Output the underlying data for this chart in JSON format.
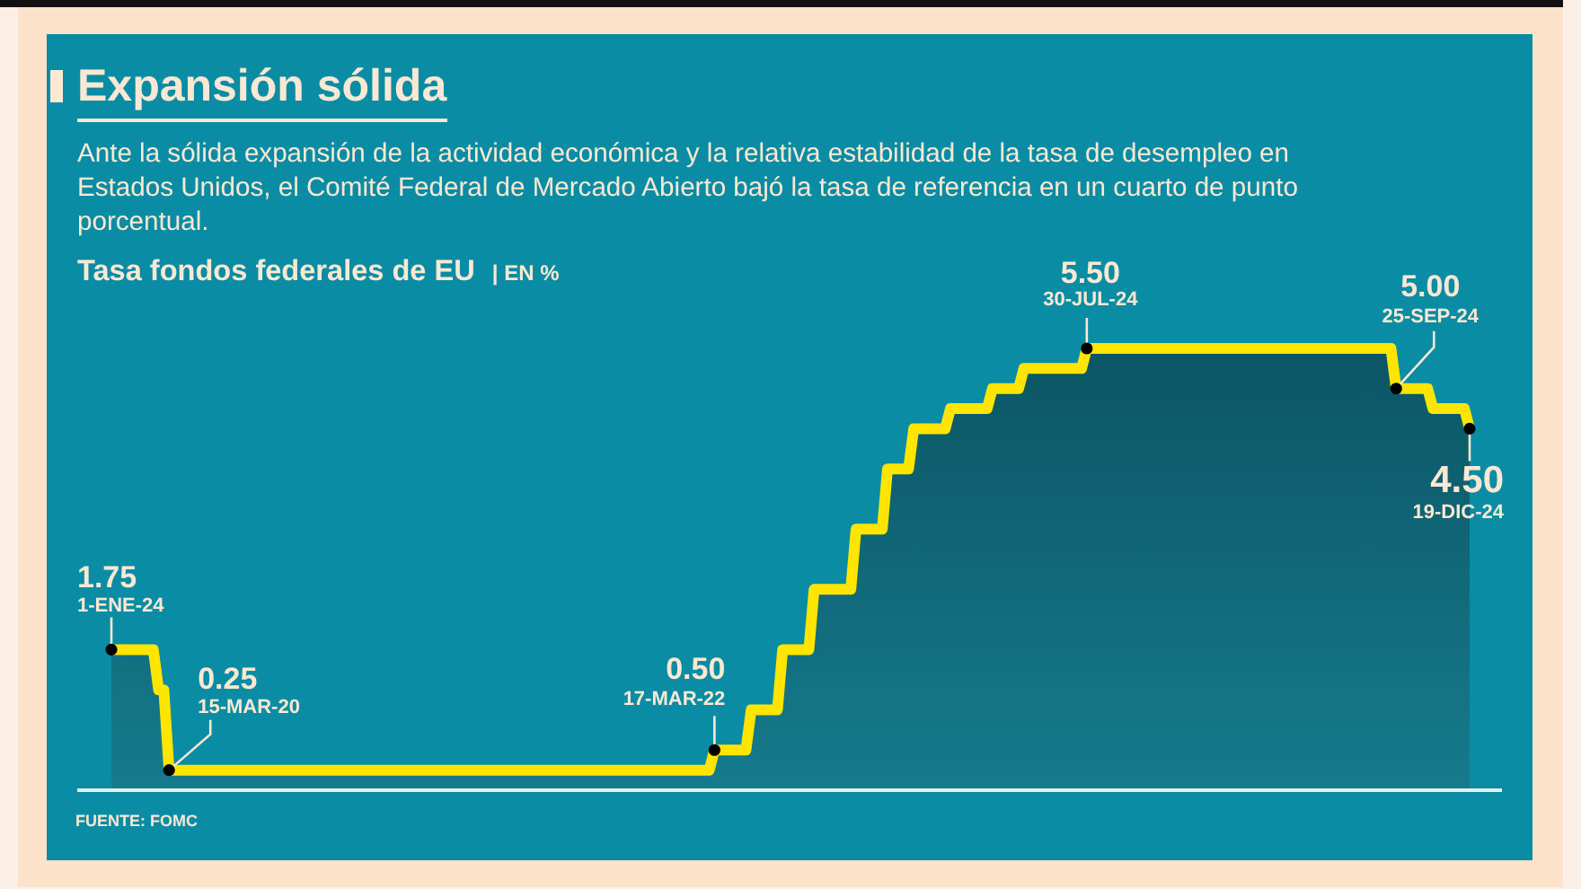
{
  "chart_data": {
    "type": "area",
    "title": "Expansión sólida",
    "subtitle": "Ante la sólida expansión de la actividad económica y la relativa estabilidad de la tasa de desempleo en Estados Unidos, el Comité Federal de Mercado Abierto bajó la tasa de referencia en un cuarto de punto porcentual.",
    "ylabel": "Tasa fondos federales de EU | EN %",
    "annotations": [
      "FUENTE: FOMC",
      "1-ENE-24",
      "15-MAR-20",
      "17-MAR-22",
      "30-JUL-24",
      "25-SEP-24",
      "19-DIC-24"
    ],
    "categories": [
      null,
      null,
      null,
      null,
      null,
      null,
      null,
      null,
      null,
      null,
      null,
      null,
      null,
      null,
      null,
      null,
      null,
      null,
      null,
      null,
      null,
      null,
      null,
      null,
      null,
      null,
      null,
      null,
      null,
      null,
      null,
      null,
      null,
      null,
      null,
      null,
      null,
      null,
      null,
      null,
      null,
      null,
      null,
      null,
      null,
      null,
      null,
      null,
      null,
      null,
      null,
      null,
      null,
      null,
      null,
      null,
      null,
      null,
      null,
      null,
      null,
      null,
      null,
      null,
      null,
      null,
      null,
      null,
      null,
      null,
      null,
      null,
      null,
      null,
      null,
      null,
      null,
      null,
      null,
      null,
      null,
      null,
      null,
      null,
      null,
      null,
      null,
      null,
      null,
      null,
      null,
      null,
      null,
      null,
      null,
      null,
      null,
      null,
      null,
      null,
      null,
      null,
      null,
      null,
      null,
      null,
      null,
      null,
      null,
      null,
      null,
      null,
      null,
      null,
      null,
      null,
      null,
      null,
      null,
      null,
      null,
      null,
      null,
      null,
      null,
      null,
      null,
      null,
      null,
      null,
      null,
      null,
      null,
      null,
      null,
      null,
      null,
      null,
      null,
      null,
      null,
      null,
      null,
      null,
      null,
      null,
      null,
      null,
      null,
      null,
      null,
      null,
      null,
      null,
      null,
      null,
      null,
      null,
      null,
      null,
      null,
      null,
      null,
      null,
      null,
      null,
      null,
      null,
      null,
      null,
      null,
      null,
      null,
      null,
      null,
      null,
      null,
      null,
      null,
      null,
      null,
      null,
      null,
      null,
      null,
      null,
      null,
      null,
      null,
      null,
      null,
      null,
      null,
      null,
      null,
      null,
      null,
      null,
      null,
      null,
      null,
      null,
      null,
      null,
      null,
      null,
      null,
      null,
      null,
      null,
      null,
      null,
      null,
      null,
      null,
      null,
      null,
      null,
      null,
      null,
      null,
      null,
      null,
      null,
      null,
      null,
      null,
      null,
      null,
      null,
      null,
      null,
      null,
      null,
      null,
      null,
      null,
      null,
      null,
      null,
      null,
      null,
      null,
      null,
      null,
      null,
      null,
      null,
      null,
      null,
      null,
      null,
      null,
      null,
      null,
      null,
      null,
      null,
      null,
      null
    ],
    "values": [
      1.75,
      1.75,
      1.75,
      1.75,
      1.75,
      1.75,
      1.75,
      1.75,
      1.75,
      1.25,
      1.25,
      0.25,
      0.25,
      0.25,
      0.25,
      0.25,
      0.25,
      0.25,
      0.25,
      0.25,
      0.25,
      0.25,
      0.25,
      0.25,
      0.25,
      0.25,
      0.25,
      0.25,
      0.25,
      0.25,
      0.25,
      0.25,
      0.25,
      0.25,
      0.25,
      0.25,
      0.25,
      0.25,
      0.25,
      0.25,
      0.25,
      0.25,
      0.25,
      0.25,
      0.25,
      0.25,
      0.25,
      0.25,
      0.25,
      0.25,
      0.25,
      0.25,
      0.25,
      0.25,
      0.25,
      0.25,
      0.25,
      0.25,
      0.25,
      0.25,
      0.25,
      0.25,
      0.25,
      0.25,
      0.25,
      0.25,
      0.25,
      0.25,
      0.25,
      0.25,
      0.25,
      0.25,
      0.25,
      0.25,
      0.25,
      0.25,
      0.25,
      0.25,
      0.25,
      0.25,
      0.25,
      0.25,
      0.25,
      0.25,
      0.25,
      0.25,
      0.25,
      0.25,
      0.25,
      0.25,
      0.25,
      0.25,
      0.25,
      0.25,
      0.25,
      0.25,
      0.25,
      0.25,
      0.25,
      0.25,
      0.25,
      0.25,
      0.25,
      0.25,
      0.25,
      0.25,
      0.25,
      0.25,
      0.25,
      0.25,
      0.25,
      0.25,
      0.25,
      0.25,
      0.25,
      0.5,
      0.5,
      0.5,
      0.5,
      0.5,
      0.5,
      0.5,
      1,
      1,
      1,
      1,
      1,
      1,
      1.75,
      1.75,
      1.75,
      1.75,
      1.75,
      1.75,
      2.5,
      2.5,
      2.5,
      2.5,
      2.5,
      2.5,
      2.5,
      2.5,
      3.25,
      3.25,
      3.25,
      3.25,
      3.25,
      3.25,
      4,
      4,
      4,
      4,
      4,
      4.5,
      4.5,
      4.5,
      4.5,
      4.5,
      4.5,
      4.5,
      4.75,
      4.75,
      4.75,
      4.75,
      4.75,
      4.75,
      4.75,
      4.75,
      5,
      5,
      5,
      5,
      5,
      5,
      5.25,
      5.25,
      5.25,
      5.25,
      5.25,
      5.25,
      5.25,
      5.25,
      5.25,
      5.25,
      5.25,
      5.25,
      5.5,
      5.5,
      5.5,
      5.5,
      5.5,
      5.5,
      5.5,
      5.5,
      5.5,
      5.5,
      5.5,
      5.5,
      5.5,
      5.5,
      5.5,
      5.5,
      5.5,
      5.5,
      5.5,
      5.5,
      5.5,
      5.5,
      5.5,
      5.5,
      5.5,
      5.5,
      5.5,
      5.5,
      5.5,
      5.5,
      5.5,
      5.5,
      5.5,
      5.5,
      5.5,
      5.5,
      5.5,
      5.5,
      5.5,
      5.5,
      5.5,
      5.5,
      5.5,
      5.5,
      5.5,
      5.5,
      5.5,
      5.5,
      5.5,
      5.5,
      5.5,
      5.5,
      5.5,
      5.5,
      5.5,
      5.5,
      5.5,
      5.5,
      5.5,
      5,
      5,
      5,
      5,
      5,
      5,
      5,
      4.75,
      4.75,
      4.75,
      4.75,
      4.75,
      4.75,
      4.75,
      4.5
    ],
    "value_labels": [
      "1.75",
      null,
      null,
      null,
      null,
      null,
      null,
      null,
      null,
      null,
      null,
      "0.25",
      null,
      null,
      null,
      null,
      null,
      null,
      null,
      null,
      null,
      null,
      null,
      null,
      null,
      null,
      null,
      null,
      null,
      null,
      null,
      null,
      null,
      null,
      null,
      null,
      null,
      null,
      null,
      null,
      null,
      null,
      null,
      null,
      null,
      null,
      null,
      null,
      null,
      null,
      null,
      null,
      null,
      null,
      null,
      null,
      null,
      null,
      null,
      null,
      null,
      null,
      null,
      null,
      null,
      null,
      null,
      null,
      null,
      null,
      null,
      null,
      null,
      null,
      null,
      null,
      null,
      null,
      null,
      null,
      null,
      null,
      null,
      null,
      null,
      null,
      null,
      null,
      null,
      null,
      null,
      null,
      null,
      null,
      null,
      null,
      null,
      null,
      null,
      null,
      null,
      null,
      null,
      null,
      null,
      null,
      null,
      null,
      null,
      null,
      null,
      null,
      null,
      null,
      null,
      "0.50",
      null,
      null,
      null,
      null,
      null,
      null,
      null,
      null,
      null,
      null,
      null,
      null,
      null,
      null,
      null,
      null,
      null,
      null,
      null,
      null,
      null,
      null,
      null,
      null,
      null,
      null,
      null,
      null,
      null,
      null,
      null,
      null,
      null,
      null,
      null,
      null,
      null,
      null,
      null,
      null,
      null,
      null,
      null,
      null,
      null,
      null,
      null,
      null,
      null,
      null,
      null,
      null,
      null,
      null,
      null,
      null,
      null,
      null,
      null,
      null,
      null,
      null,
      null,
      null,
      null,
      null,
      null,
      null,
      null,
      null,
      "5.50",
      null,
      null,
      null,
      null,
      null,
      null,
      null,
      null,
      null,
      null,
      null,
      null,
      null,
      null,
      null,
      null,
      null,
      null,
      null,
      null,
      null,
      null,
      null,
      null,
      null,
      null,
      null,
      null,
      null,
      null,
      null,
      null,
      null,
      null,
      null,
      null,
      null,
      null,
      null,
      null,
      null,
      null,
      null,
      null,
      null,
      null,
      null,
      null,
      null,
      null,
      null,
      null,
      null,
      null,
      null,
      null,
      null,
      null,
      "5.00",
      null,
      null,
      null,
      null,
      null,
      null,
      null,
      null,
      null,
      null,
      null,
      null,
      null,
      "4.50"
    ],
    "color": "#ffe500",
    "tick_labels": false
  }
}
